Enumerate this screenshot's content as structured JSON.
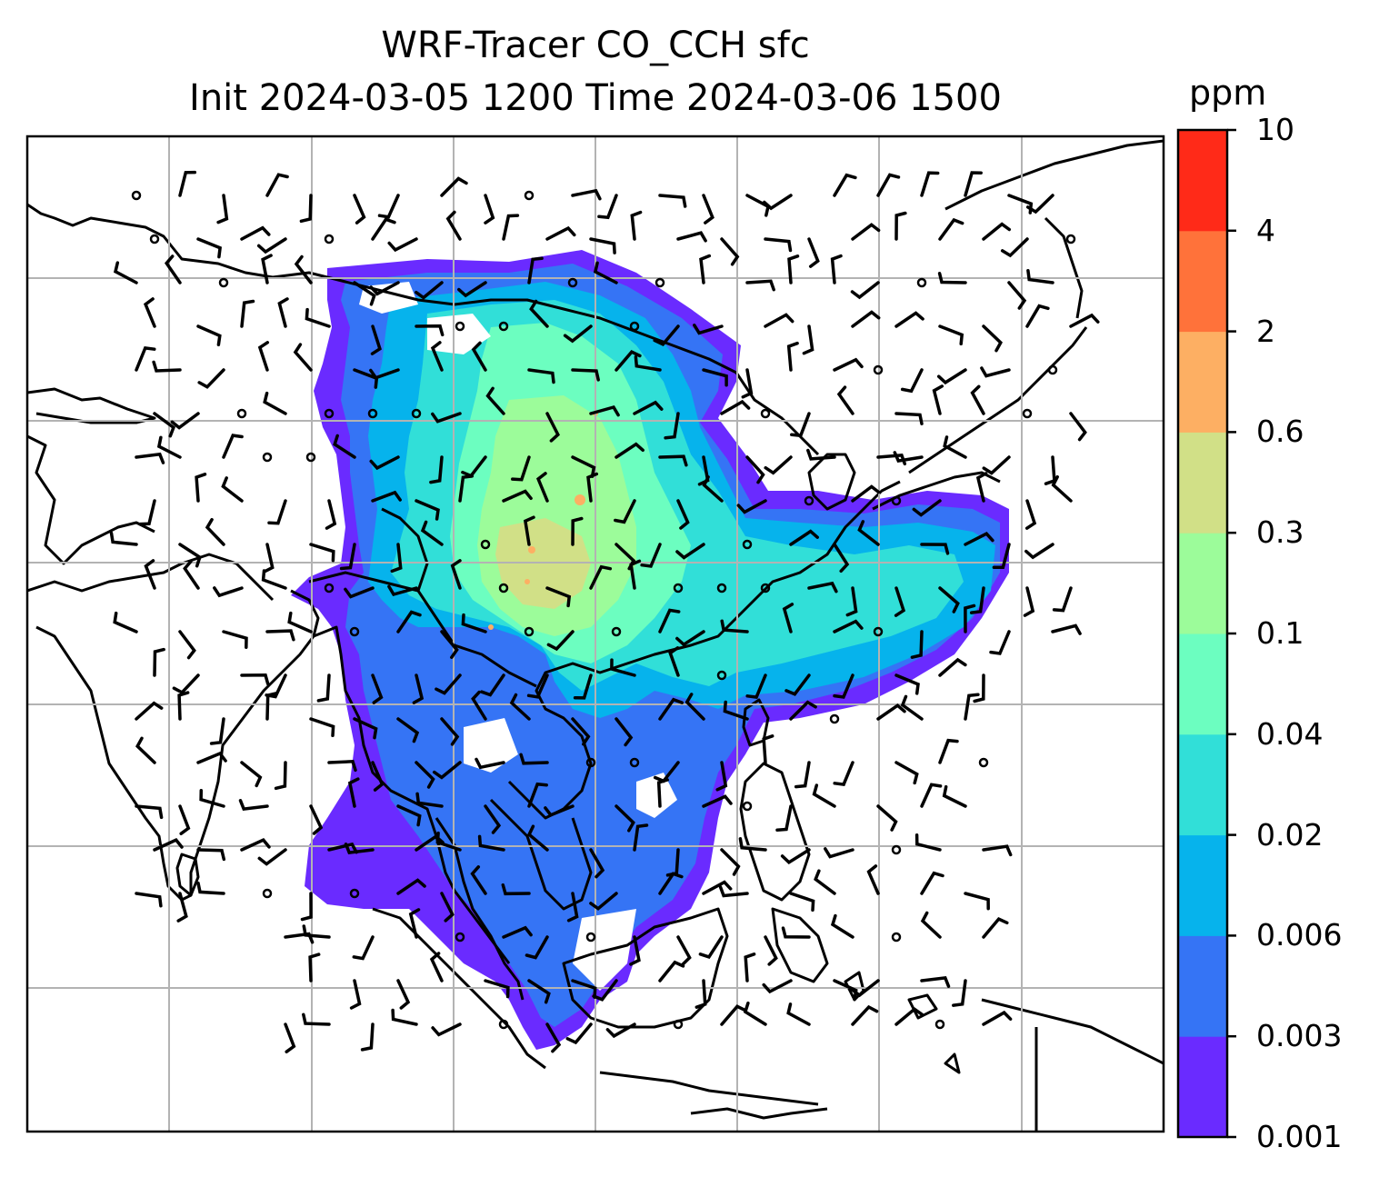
{
  "title": {
    "line1": "WRF-Tracer CO_CCH sfc",
    "line2": "Init 2024-03-05 1200 Time 2024-03-06 1500"
  },
  "colorbar": {
    "unit": "ppm",
    "levels": [
      "0.001",
      "0.003",
      "0.006",
      "0.02",
      "0.04",
      "0.1",
      "0.3",
      "0.6",
      "2",
      "4",
      "10"
    ],
    "colors": [
      "#6a2bff",
      "#3574f5",
      "#06b3ec",
      "#31dfd8",
      "#6cfec0",
      "#9cfc9a",
      "#d1e087",
      "#fdaf63",
      "#ff723a",
      "#ff2a18"
    ]
  },
  "map": {
    "type": "filled-contour with wind barbs",
    "variable": "CO_CCH surface tracer",
    "gridlines": true,
    "coastlines": true,
    "wind_barbs": true
  }
}
